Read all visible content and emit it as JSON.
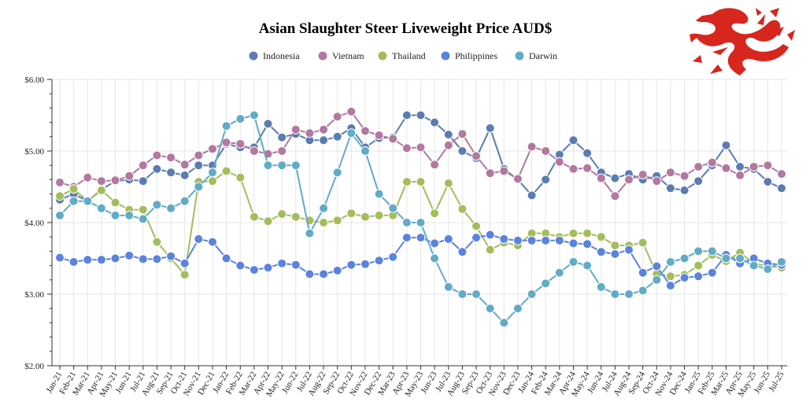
{
  "chart_data": {
    "type": "line",
    "title": "Asian Slaughter Steer Liveweight Price AUD$",
    "ylim": [
      2,
      6
    ],
    "y_ticks": [
      {
        "value": 2,
        "label": "$2.00"
      },
      {
        "value": 3,
        "label": "$3.00"
      },
      {
        "value": 4,
        "label": "$4.00"
      },
      {
        "value": 5,
        "label": "$5.00"
      },
      {
        "value": 6,
        "label": "$6.00"
      }
    ],
    "grid": true,
    "legend_position": "top-center",
    "categories": [
      "Jan-21",
      "Feb-21",
      "Mar-21",
      "Apr-21",
      "May-21",
      "Jun-21",
      "Jul-21",
      "Aug-21",
      "Sep-21",
      "Oct-21",
      "Nov-21",
      "Dec-21",
      "Jan-22",
      "Feb-22",
      "Mar-22",
      "Apr-22",
      "May-22",
      "Jun-22",
      "Jul-22",
      "Aug-22",
      "Sep-22",
      "Oct-22",
      "Nov-22",
      "Dec-22",
      "Mar-23",
      "Apr-23",
      "May-23",
      "Jun-23",
      "Jul-23",
      "Aug-23",
      "Sep-23",
      "Oct-23",
      "Nov-23",
      "Dec-23",
      "Jan-24",
      "Feb-24",
      "Mar-24",
      "Apr-24",
      "May-24",
      "Jun-24",
      "Jul-24",
      "Aug-24",
      "Sep-24",
      "Oct-24",
      "Nov-24",
      "Dec-24",
      "Jan-25",
      "Feb-25",
      "Mar-25",
      "Apr-25",
      "May-25",
      "Jun-25",
      "Jul-25"
    ],
    "series": [
      {
        "name": "Indonesia",
        "color": "#5b7cb1",
        "points": [
          [
            0,
            4.32
          ],
          [
            1,
            4.4
          ],
          [
            2,
            4.3
          ],
          [
            3,
            4.46
          ],
          [
            4,
            4.58
          ],
          [
            5,
            4.6
          ],
          [
            6,
            4.58
          ],
          [
            7,
            4.75
          ],
          [
            8,
            4.7
          ],
          [
            9,
            4.66
          ],
          [
            10,
            4.8
          ],
          [
            11,
            4.8
          ],
          [
            12,
            5.1
          ],
          [
            13,
            5.05
          ],
          [
            14,
            5.05
          ],
          [
            15,
            5.38
          ],
          [
            16,
            5.19
          ],
          [
            17,
            5.24
          ],
          [
            18,
            5.15
          ],
          [
            19,
            5.15
          ],
          [
            20,
            5.2
          ],
          [
            21,
            5.32
          ],
          [
            22,
            5.05
          ],
          [
            23,
            5.18
          ],
          [
            24,
            5.19
          ],
          [
            25,
            5.5
          ],
          [
            26,
            5.5
          ],
          [
            27,
            5.4
          ],
          [
            28,
            5.23
          ],
          [
            29,
            5.0
          ],
          [
            30,
            4.9
          ],
          [
            31,
            5.32
          ],
          [
            32,
            4.75
          ],
          [
            33,
            4.6
          ],
          [
            34,
            4.38
          ],
          [
            35,
            4.6
          ],
          [
            36,
            4.95
          ],
          [
            37,
            5.15
          ],
          [
            38,
            4.97
          ],
          [
            39,
            4.7
          ],
          [
            40,
            4.62
          ],
          [
            41,
            4.68
          ],
          [
            42,
            4.6
          ],
          [
            43,
            4.65
          ],
          [
            44,
            4.48
          ],
          [
            45,
            4.45
          ],
          [
            46,
            4.58
          ],
          [
            47,
            4.8
          ],
          [
            48,
            5.08
          ],
          [
            49,
            4.78
          ],
          [
            50,
            4.75
          ],
          [
            51,
            4.57
          ],
          [
            52,
            4.48
          ]
        ]
      },
      {
        "name": "Vietnam",
        "color": "#b2789f",
        "points": [
          [
            0,
            4.56
          ],
          [
            1,
            4.5
          ],
          [
            2,
            4.63
          ],
          [
            3,
            4.58
          ],
          [
            4,
            4.59
          ],
          [
            5,
            4.65
          ],
          [
            6,
            4.8
          ],
          [
            7,
            4.94
          ],
          [
            8,
            4.91
          ],
          [
            9,
            4.81
          ],
          [
            10,
            4.94
          ],
          [
            11,
            5.03
          ],
          [
            12,
            5.12
          ],
          [
            13,
            5.1
          ],
          [
            14,
            5.0
          ],
          [
            15,
            4.96
          ],
          [
            16,
            5.0
          ],
          [
            17,
            5.3
          ],
          [
            18,
            5.25
          ],
          [
            19,
            5.3
          ],
          [
            20,
            5.48
          ],
          [
            21,
            5.55
          ],
          [
            22,
            5.28
          ],
          [
            23,
            5.22
          ],
          [
            24,
            5.17
          ],
          [
            25,
            5.04
          ],
          [
            26,
            5.05
          ],
          [
            27,
            4.81
          ],
          [
            28,
            5.08
          ],
          [
            29,
            5.24
          ],
          [
            30,
            4.93
          ],
          [
            31,
            4.69
          ],
          [
            32,
            4.72
          ],
          [
            33,
            4.61
          ],
          [
            34,
            5.06
          ],
          [
            35,
            5.0
          ],
          [
            36,
            4.85
          ],
          [
            37,
            4.75
          ],
          [
            38,
            4.76
          ],
          [
            39,
            4.62
          ],
          [
            40,
            4.37
          ],
          [
            41,
            4.6
          ],
          [
            42,
            4.67
          ],
          [
            43,
            4.58
          ],
          [
            44,
            4.7
          ],
          [
            45,
            4.65
          ],
          [
            46,
            4.78
          ],
          [
            47,
            4.84
          ],
          [
            48,
            4.76
          ],
          [
            49,
            4.66
          ],
          [
            50,
            4.78
          ],
          [
            51,
            4.8
          ],
          [
            52,
            4.68
          ]
        ]
      },
      {
        "name": "Thailand",
        "color": "#a4bd5c",
        "points": [
          [
            0,
            4.37
          ],
          [
            1,
            4.47
          ],
          [
            2,
            4.3
          ],
          [
            3,
            4.45
          ],
          [
            4,
            4.28
          ],
          [
            5,
            4.18
          ],
          [
            6,
            4.18
          ],
          [
            7,
            3.73
          ],
          [
            8,
            3.5
          ],
          [
            9,
            3.27
          ],
          [
            10,
            4.57
          ],
          [
            11,
            4.58
          ],
          [
            12,
            4.72
          ],
          [
            13,
            4.63
          ],
          [
            14,
            4.08
          ],
          [
            15,
            4.02
          ],
          [
            16,
            4.12
          ],
          [
            17,
            4.08
          ],
          [
            18,
            4.03
          ],
          [
            19,
            4.0
          ],
          [
            20,
            4.03
          ],
          [
            21,
            4.13
          ],
          [
            22,
            4.08
          ],
          [
            23,
            4.1
          ],
          [
            24,
            4.1
          ],
          [
            25,
            4.57
          ],
          [
            26,
            4.57
          ],
          [
            27,
            4.13
          ],
          [
            28,
            4.55
          ],
          [
            29,
            4.19
          ],
          [
            30,
            3.95
          ],
          [
            31,
            3.62
          ],
          [
            32,
            3.72
          ],
          [
            33,
            3.68
          ],
          [
            34,
            3.85
          ],
          [
            35,
            3.85
          ],
          [
            36,
            3.8
          ],
          [
            37,
            3.85
          ],
          [
            38,
            3.85
          ],
          [
            39,
            3.8
          ],
          [
            40,
            3.68
          ],
          [
            41,
            3.68
          ],
          [
            42,
            3.72
          ],
          [
            43,
            3.28
          ],
          [
            44,
            3.25
          ],
          [
            45,
            3.27
          ],
          [
            46,
            3.4
          ],
          [
            47,
            3.55
          ],
          [
            48,
            3.46
          ],
          [
            49,
            3.58
          ],
          [
            50,
            3.43
          ],
          [
            51,
            3.39
          ],
          [
            52,
            3.37
          ]
        ]
      },
      {
        "name": "Philippines",
        "color": "#5b83dd",
        "points": [
          [
            0,
            3.51
          ],
          [
            1,
            3.45
          ],
          [
            2,
            3.48
          ],
          [
            3,
            3.48
          ],
          [
            4,
            3.5
          ],
          [
            5,
            3.54
          ],
          [
            6,
            3.49
          ],
          [
            7,
            3.49
          ],
          [
            8,
            3.53
          ],
          [
            9,
            3.43
          ],
          [
            10,
            3.77
          ],
          [
            11,
            3.73
          ],
          [
            12,
            3.5
          ],
          [
            13,
            3.4
          ],
          [
            14,
            3.34
          ],
          [
            15,
            3.37
          ],
          [
            16,
            3.43
          ],
          [
            17,
            3.41
          ],
          [
            18,
            3.28
          ],
          [
            19,
            3.28
          ],
          [
            20,
            3.33
          ],
          [
            21,
            3.41
          ],
          [
            22,
            3.42
          ],
          [
            23,
            3.47
          ],
          [
            24,
            3.52
          ],
          [
            25,
            3.79
          ],
          [
            26,
            3.79
          ],
          [
            27,
            3.71
          ],
          [
            28,
            3.77
          ],
          [
            29,
            3.59
          ],
          [
            30,
            3.79
          ],
          [
            31,
            3.83
          ],
          [
            32,
            3.77
          ],
          [
            33,
            3.75
          ],
          [
            34,
            3.75
          ],
          [
            35,
            3.75
          ],
          [
            36,
            3.75
          ],
          [
            37,
            3.71
          ],
          [
            38,
            3.7
          ],
          [
            39,
            3.59
          ],
          [
            40,
            3.56
          ],
          [
            41,
            3.62
          ],
          [
            42,
            3.3
          ],
          [
            43,
            3.39
          ],
          [
            44,
            3.12
          ],
          [
            45,
            3.23
          ],
          [
            46,
            3.25
          ],
          [
            47,
            3.3
          ],
          [
            48,
            3.55
          ],
          [
            49,
            3.43
          ],
          [
            50,
            3.5
          ],
          [
            51,
            3.43
          ],
          [
            52,
            3.41
          ]
        ]
      },
      {
        "name": "Darwin",
        "color": "#62abc6",
        "points": [
          [
            0,
            4.1
          ],
          [
            1,
            4.3
          ],
          [
            2,
            4.3
          ],
          [
            3,
            4.2
          ],
          [
            4,
            4.1
          ],
          [
            5,
            4.1
          ],
          [
            6,
            4.05
          ],
          [
            7,
            4.25
          ],
          [
            8,
            4.2
          ],
          [
            9,
            4.3
          ],
          [
            10,
            4.5
          ],
          [
            11,
            4.7
          ],
          [
            12,
            5.35
          ],
          [
            13,
            5.45
          ],
          [
            14,
            5.5
          ],
          [
            15,
            4.8
          ],
          [
            16,
            4.8
          ],
          [
            17,
            4.8
          ],
          [
            18,
            3.85
          ],
          [
            19,
            4.2
          ],
          [
            20,
            4.7
          ],
          [
            21,
            5.25
          ],
          [
            22,
            5.0
          ],
          [
            23,
            4.4
          ],
          [
            24,
            4.2
          ],
          [
            25,
            4.0
          ],
          [
            26,
            4.0
          ],
          [
            27,
            3.5
          ],
          [
            28,
            3.1
          ],
          [
            29,
            3.0
          ],
          [
            30,
            3.0
          ],
          [
            31,
            2.8
          ],
          [
            32,
            2.6
          ],
          [
            33,
            2.8
          ],
          [
            34,
            3.0
          ],
          [
            35,
            3.15
          ],
          [
            36,
            3.3
          ],
          [
            37,
            3.45
          ],
          [
            38,
            3.4
          ],
          [
            39,
            3.1
          ],
          [
            40,
            3.0
          ],
          [
            41,
            3.0
          ],
          [
            42,
            3.05
          ],
          [
            43,
            3.2
          ],
          [
            44,
            3.45
          ],
          [
            45,
            3.5
          ],
          [
            46,
            3.6
          ],
          [
            47,
            3.6
          ],
          [
            48,
            3.5
          ],
          [
            49,
            3.5
          ],
          [
            50,
            3.4
          ],
          [
            51,
            3.35
          ],
          [
            52,
            3.45
          ]
        ]
      }
    ]
  }
}
